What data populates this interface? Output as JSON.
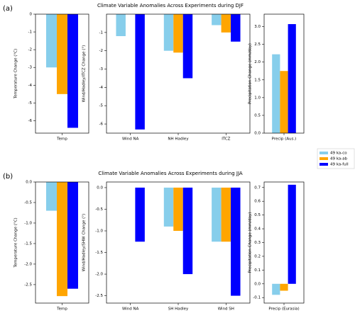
{
  "chart_data": [
    {
      "type": "bar",
      "panel_label": "(a)",
      "title": "Climate Variable Anomalies Across Experiments during DJF",
      "ylabel": "Temperature Change (°C)",
      "categories": [
        "Temp"
      ],
      "series": [
        {
          "name": "49 ka-co",
          "color": "#87ceeb",
          "values": [
            -3.0
          ]
        },
        {
          "name": "49 ka-ab",
          "color": "#ffa500",
          "values": [
            -4.5
          ]
        },
        {
          "name": "49 ka-full",
          "color": "#0000ff",
          "values": [
            -6.4
          ]
        }
      ],
      "ylim": [
        -6.7,
        0
      ],
      "yticks": [
        0,
        -1,
        -2,
        -3,
        -4,
        -5,
        -6
      ]
    },
    {
      "type": "bar",
      "ylabel": "Wind/Hadley/ITCZ Change (°)",
      "categories": [
        "Wind NA",
        "NH Hadley",
        "ITCZ"
      ],
      "series": [
        {
          "values": [
            -1.2,
            -2.0,
            -0.6
          ]
        },
        {
          "values": [
            0,
            -2.1,
            -1.0
          ]
        },
        {
          "values": [
            -6.3,
            -3.5,
            -1.5
          ]
        }
      ],
      "ylim": [
        -6.5,
        0
      ],
      "yticks": [
        -1,
        -2,
        -3,
        -4,
        -5,
        -6
      ]
    },
    {
      "type": "bar",
      "ylabel": "Precipitation Change (mm/day)",
      "categories": [
        "Precip (Aus.)"
      ],
      "series": [
        {
          "values": [
            2.22
          ]
        },
        {
          "values": [
            1.75
          ]
        },
        {
          "values": [
            3.07
          ]
        }
      ],
      "ylim": [
        0,
        3.35
      ],
      "yticks": [
        {
          "value": 0,
          "label": "0.0"
        },
        0.5,
        {
          "value": 1,
          "label": "1.0"
        },
        1.5,
        {
          "value": 2,
          "label": "2.0"
        },
        2.5,
        {
          "value": 3,
          "label": "3.0"
        }
      ]
    },
    {
      "type": "bar",
      "panel_label": "(b)",
      "title": "Climate Variable Anomalies Across Experiments during JJA",
      "ylabel": "Temperature Change (°C)",
      "categories": [
        "Temp"
      ],
      "series": [
        {
          "values": [
            -0.7
          ]
        },
        {
          "values": [
            -2.78
          ]
        },
        {
          "values": [
            -2.6
          ]
        }
      ],
      "ylim": [
        -2.95,
        0
      ],
      "yticks": [
        {
          "value": 0,
          "label": "0.0"
        },
        -0.5,
        {
          "value": -1,
          "label": "-1.0"
        },
        -1.5,
        {
          "value": -2,
          "label": "-2.0"
        },
        -2.5
      ]
    },
    {
      "type": "bar",
      "ylabel": "Wind/Hadley/SHW Change (°)",
      "categories": [
        "Wind NA",
        "SH Hadley",
        "Wind SH"
      ],
      "series": [
        {
          "values": [
            0,
            -0.9,
            -1.25
          ]
        },
        {
          "values": [
            0,
            -1.0,
            -1.25
          ]
        },
        {
          "values": [
            -1.25,
            -2.0,
            -2.5
          ]
        }
      ],
      "ylim": [
        -2.67,
        0.13
      ],
      "yticks": [
        {
          "value": 0,
          "label": "0.0"
        },
        -0.5,
        {
          "value": -1,
          "label": "-1.0"
        },
        -1.5,
        {
          "value": -2,
          "label": "-2.0"
        },
        -2.5
      ]
    },
    {
      "type": "bar",
      "ylabel": "Precipitation Change (mm/day)",
      "categories": [
        "Precip (Eurasia)"
      ],
      "series": [
        {
          "values": [
            -0.08
          ]
        },
        {
          "values": [
            -0.05
          ]
        },
        {
          "values": [
            0.72
          ]
        }
      ],
      "ylim": [
        -0.14,
        0.74
      ],
      "yticks": [
        -0.1,
        {
          "value": 0,
          "label": "0.0"
        },
        0.1,
        0.2,
        0.3,
        0.4,
        0.5,
        0.6,
        0.7
      ]
    }
  ]
}
